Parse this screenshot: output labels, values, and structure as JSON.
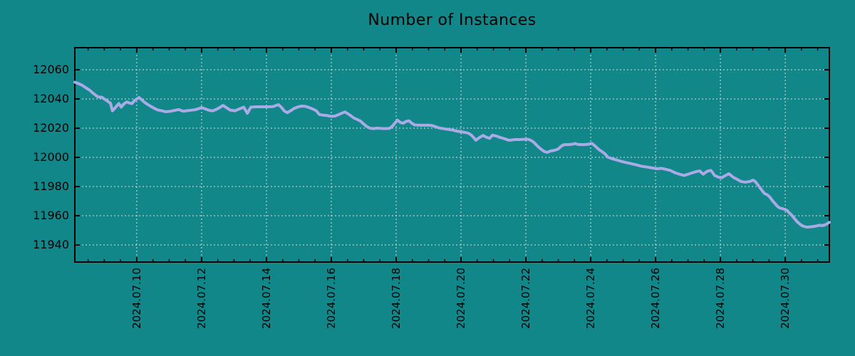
{
  "chart_data": {
    "type": "line",
    "title": "Number of Instances",
    "xlabel": "",
    "ylabel": "",
    "x_unit": "day of July 2024 (fractional = time of day)",
    "xlim": [
      8.09,
      31.36
    ],
    "ylim": [
      11928.3,
      12075.1
    ],
    "grid": true,
    "legend": "none",
    "yticks": [
      11940,
      11960,
      11980,
      12000,
      12020,
      12040,
      12060
    ],
    "xticks": [
      {
        "value": 10,
        "label": "2024.07.10"
      },
      {
        "value": 12,
        "label": "2024.07.12"
      },
      {
        "value": 14,
        "label": "2024.07.14"
      },
      {
        "value": 16,
        "label": "2024.07.16"
      },
      {
        "value": 18,
        "label": "2024.07.18"
      },
      {
        "value": 20,
        "label": "2024.07.20"
      },
      {
        "value": 22,
        "label": "2024.07.22"
      },
      {
        "value": 24,
        "label": "2024.07.24"
      },
      {
        "value": 26,
        "label": "2024.07.26"
      },
      {
        "value": 28,
        "label": "2024.07.28"
      },
      {
        "value": 30,
        "label": "2024.07.30"
      }
    ],
    "x_minor_tick_step": 0.5,
    "colors": {
      "background": "#12878a",
      "line": "#aaaae6",
      "grid": "#dcdcdc",
      "axis": "#000000",
      "text": "#000000"
    },
    "series": [
      {
        "name": "instances",
        "points": [
          [
            8.09,
            12051.5
          ],
          [
            8.2,
            12050.5
          ],
          [
            8.31,
            12049.5
          ],
          [
            8.42,
            12047.8
          ],
          [
            8.55,
            12046.0
          ],
          [
            8.64,
            12044.2
          ],
          [
            8.73,
            12042.6
          ],
          [
            8.81,
            12041.3
          ],
          [
            8.92,
            12041.2
          ],
          [
            9.01,
            12039.8
          ],
          [
            9.1,
            12038.5
          ],
          [
            9.19,
            12037.0
          ],
          [
            9.25,
            12031.9
          ],
          [
            9.32,
            12033.5
          ],
          [
            9.38,
            12035.2
          ],
          [
            9.45,
            12036.8
          ],
          [
            9.52,
            12034.4
          ],
          [
            9.6,
            12036.5
          ],
          [
            9.69,
            12038.0
          ],
          [
            9.78,
            12037.2
          ],
          [
            9.85,
            12036.8
          ],
          [
            9.93,
            12038.8
          ],
          [
            10.0,
            12040.0
          ],
          [
            10.07,
            12041.0
          ],
          [
            10.15,
            12039.5
          ],
          [
            10.24,
            12037.7
          ],
          [
            10.33,
            12036.4
          ],
          [
            10.42,
            12035.1
          ],
          [
            10.51,
            12034.0
          ],
          [
            10.57,
            12033.2
          ],
          [
            10.66,
            12032.4
          ],
          [
            10.77,
            12031.9
          ],
          [
            10.9,
            12031.2
          ],
          [
            11.05,
            12031.6
          ],
          [
            11.19,
            12032.3
          ],
          [
            11.3,
            12032.7
          ],
          [
            11.38,
            12032.0
          ],
          [
            11.45,
            12031.6
          ],
          [
            11.56,
            12032.0
          ],
          [
            11.67,
            12032.3
          ],
          [
            11.78,
            12032.5
          ],
          [
            11.89,
            12033.2
          ],
          [
            12.0,
            12034.1
          ],
          [
            12.09,
            12033.4
          ],
          [
            12.18,
            12032.6
          ],
          [
            12.26,
            12032.1
          ],
          [
            12.35,
            12031.9
          ],
          [
            12.46,
            12032.9
          ],
          [
            12.57,
            12034.3
          ],
          [
            12.66,
            12035.6
          ],
          [
            12.77,
            12034.0
          ],
          [
            12.88,
            12032.4
          ],
          [
            13.03,
            12031.9
          ],
          [
            13.16,
            12033.1
          ],
          [
            13.3,
            12034.4
          ],
          [
            13.41,
            12030.2
          ],
          [
            13.52,
            12034.4
          ],
          [
            13.69,
            12034.6
          ],
          [
            13.87,
            12034.6
          ],
          [
            14.04,
            12034.6
          ],
          [
            14.2,
            12034.7
          ],
          [
            14.29,
            12035.5
          ],
          [
            14.37,
            12036.1
          ],
          [
            14.46,
            12034.3
          ],
          [
            14.55,
            12031.8
          ],
          [
            14.64,
            12030.6
          ],
          [
            14.75,
            12032.0
          ],
          [
            14.86,
            12033.6
          ],
          [
            14.97,
            12034.5
          ],
          [
            15.08,
            12035.1
          ],
          [
            15.21,
            12034.9
          ],
          [
            15.34,
            12033.9
          ],
          [
            15.45,
            12032.9
          ],
          [
            15.54,
            12031.9
          ],
          [
            15.63,
            12029.4
          ],
          [
            15.74,
            12028.9
          ],
          [
            15.87,
            12028.6
          ],
          [
            16.0,
            12028.1
          ],
          [
            16.11,
            12028.3
          ],
          [
            16.22,
            12029.2
          ],
          [
            16.33,
            12030.3
          ],
          [
            16.42,
            12031.1
          ],
          [
            16.51,
            12029.9
          ],
          [
            16.59,
            12028.7
          ],
          [
            16.7,
            12026.9
          ],
          [
            16.81,
            12025.8
          ],
          [
            16.9,
            12024.8
          ],
          [
            17.01,
            12022.6
          ],
          [
            17.1,
            12021.0
          ],
          [
            17.19,
            12020.0
          ],
          [
            17.3,
            12019.7
          ],
          [
            17.41,
            12020.0
          ],
          [
            17.54,
            12019.8
          ],
          [
            17.67,
            12019.7
          ],
          [
            17.8,
            12019.9
          ],
          [
            17.89,
            12021.5
          ],
          [
            17.96,
            12023.4
          ],
          [
            18.04,
            12025.5
          ],
          [
            18.13,
            12023.9
          ],
          [
            18.22,
            12023.4
          ],
          [
            18.31,
            12024.6
          ],
          [
            18.4,
            12025.0
          ],
          [
            18.48,
            12023.4
          ],
          [
            18.57,
            12022.2
          ],
          [
            18.73,
            12022.0
          ],
          [
            18.88,
            12022.0
          ],
          [
            19.03,
            12022.0
          ],
          [
            19.14,
            12021.6
          ],
          [
            19.23,
            12020.8
          ],
          [
            19.34,
            12020.1
          ],
          [
            19.47,
            12019.6
          ],
          [
            19.6,
            12019.2
          ],
          [
            19.74,
            12018.7
          ],
          [
            19.87,
            12018.0
          ],
          [
            20.0,
            12017.5
          ],
          [
            20.11,
            12017.1
          ],
          [
            20.22,
            12016.6
          ],
          [
            20.31,
            12015.4
          ],
          [
            20.4,
            12013.3
          ],
          [
            20.46,
            12011.7
          ],
          [
            20.55,
            12013.3
          ],
          [
            20.68,
            12015.0
          ],
          [
            20.77,
            12013.9
          ],
          [
            20.88,
            12013.0
          ],
          [
            20.97,
            12015.2
          ],
          [
            21.08,
            12014.6
          ],
          [
            21.16,
            12014.0
          ],
          [
            21.27,
            12013.2
          ],
          [
            21.38,
            12012.5
          ],
          [
            21.47,
            12011.7
          ],
          [
            21.56,
            12011.9
          ],
          [
            21.67,
            12012.2
          ],
          [
            21.82,
            12012.2
          ],
          [
            21.96,
            12012.4
          ],
          [
            22.04,
            12012.4
          ],
          [
            22.13,
            12012.0
          ],
          [
            22.24,
            12010.4
          ],
          [
            22.35,
            12007.9
          ],
          [
            22.46,
            12005.7
          ],
          [
            22.57,
            12004.0
          ],
          [
            22.66,
            12003.4
          ],
          [
            22.77,
            12004.4
          ],
          [
            22.88,
            12004.8
          ],
          [
            22.99,
            12005.6
          ],
          [
            23.1,
            12007.8
          ],
          [
            23.19,
            12008.7
          ],
          [
            23.32,
            12008.7
          ],
          [
            23.45,
            12009.0
          ],
          [
            23.52,
            12009.5
          ],
          [
            23.6,
            12008.8
          ],
          [
            23.74,
            12008.7
          ],
          [
            23.87,
            12008.8
          ],
          [
            23.98,
            12009.2
          ],
          [
            24.04,
            12009.5
          ],
          [
            24.13,
            12007.9
          ],
          [
            24.2,
            12006.4
          ],
          [
            24.26,
            12005.2
          ],
          [
            24.35,
            12003.9
          ],
          [
            24.44,
            12002.4
          ],
          [
            24.53,
            12000.1
          ],
          [
            24.64,
            11999.2
          ],
          [
            24.75,
            11998.5
          ],
          [
            24.86,
            11997.8
          ],
          [
            24.97,
            11997.1
          ],
          [
            25.08,
            11996.5
          ],
          [
            25.19,
            11996.0
          ],
          [
            25.3,
            11995.4
          ],
          [
            25.41,
            11994.8
          ],
          [
            25.52,
            11994.2
          ],
          [
            25.63,
            11993.7
          ],
          [
            25.74,
            11993.3
          ],
          [
            25.85,
            11992.9
          ],
          [
            25.96,
            11992.5
          ],
          [
            26.07,
            11992.2
          ],
          [
            26.18,
            11992.5
          ],
          [
            26.26,
            11992.1
          ],
          [
            26.37,
            11991.5
          ],
          [
            26.46,
            11991.0
          ],
          [
            26.55,
            11990.0
          ],
          [
            26.62,
            11989.3
          ],
          [
            26.75,
            11988.4
          ],
          [
            26.88,
            11987.6
          ],
          [
            27.01,
            11988.5
          ],
          [
            27.12,
            11989.3
          ],
          [
            27.25,
            11990.2
          ],
          [
            27.36,
            11990.7
          ],
          [
            27.47,
            11988.5
          ],
          [
            27.6,
            11990.6
          ],
          [
            27.71,
            11991.0
          ],
          [
            27.82,
            11987.6
          ],
          [
            27.93,
            11986.5
          ],
          [
            28.04,
            11986.0
          ],
          [
            28.15,
            11987.5
          ],
          [
            28.26,
            11988.8
          ],
          [
            28.4,
            11986.3
          ],
          [
            28.51,
            11985.0
          ],
          [
            28.64,
            11983.4
          ],
          [
            28.77,
            11983.0
          ],
          [
            28.9,
            11983.4
          ],
          [
            29.01,
            11984.4
          ],
          [
            29.08,
            11983.4
          ],
          [
            29.16,
            11981.0
          ],
          [
            29.23,
            11978.9
          ],
          [
            29.3,
            11976.8
          ],
          [
            29.36,
            11975.2
          ],
          [
            29.45,
            11974.3
          ],
          [
            29.52,
            11972.9
          ],
          [
            29.6,
            11970.5
          ],
          [
            29.69,
            11968.2
          ],
          [
            29.76,
            11966.4
          ],
          [
            29.82,
            11965.4
          ],
          [
            29.91,
            11964.9
          ],
          [
            29.98,
            11964.4
          ],
          [
            30.05,
            11963.7
          ],
          [
            30.11,
            11962.3
          ],
          [
            30.2,
            11960.4
          ],
          [
            30.29,
            11957.9
          ],
          [
            30.38,
            11955.6
          ],
          [
            30.47,
            11953.9
          ],
          [
            30.55,
            11952.9
          ],
          [
            30.66,
            11952.2
          ],
          [
            30.77,
            11952.4
          ],
          [
            30.88,
            11952.7
          ],
          [
            30.99,
            11953.1
          ],
          [
            31.05,
            11953.5
          ],
          [
            31.12,
            11953.2
          ],
          [
            31.21,
            11953.6
          ],
          [
            31.27,
            11954.2
          ],
          [
            31.36,
            11955.5
          ]
        ]
      }
    ]
  }
}
